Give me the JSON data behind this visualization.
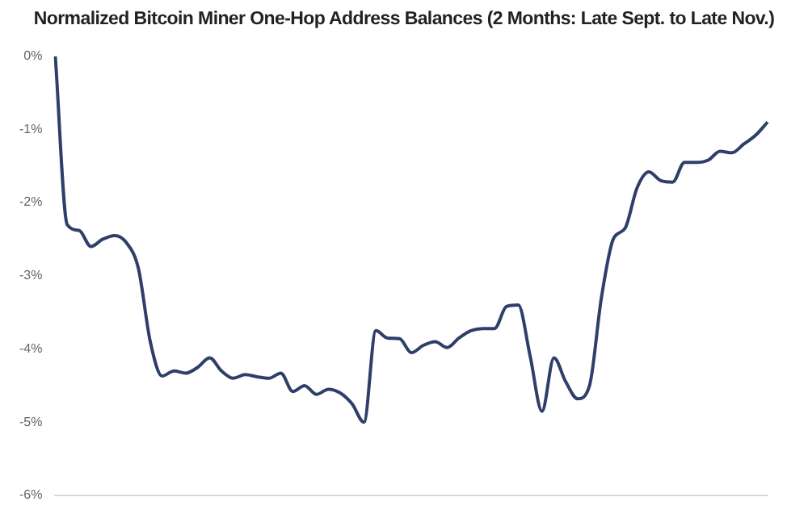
{
  "chart_data": {
    "type": "line",
    "title": "Normalized Bitcoin Miner One-Hop Address Balances (2 Months: Late Sept. to Late Nov.)",
    "categories": [
      null,
      null,
      null,
      null,
      null,
      null,
      null,
      null,
      null,
      null,
      null,
      null,
      null,
      null,
      null,
      null,
      null,
      null,
      null,
      null,
      null,
      null,
      null,
      null,
      null,
      null,
      null,
      null,
      null,
      null,
      null,
      null,
      null,
      null,
      null,
      null,
      null,
      null,
      null,
      null,
      null,
      null,
      null,
      null,
      null,
      null,
      null,
      null,
      null,
      null,
      null,
      null,
      null,
      null,
      null,
      null,
      null,
      null,
      null,
      null,
      null
    ],
    "series": [
      {
        "color": "#2f3f6a",
        "values": [
          0,
          -2.3,
          -2.38,
          -2.6,
          -2.5,
          -2.45,
          -2.55,
          -2.9,
          -3.9,
          -4.37,
          -4.3,
          -4.33,
          -4.25,
          -4.12,
          -4.3,
          -4.4,
          -4.35,
          -4.38,
          -4.4,
          -4.33,
          -4.58,
          -4.5,
          -4.62,
          -4.55,
          -4.6,
          -4.75,
          -5.0,
          -3.75,
          -3.85,
          -3.86,
          -4.05,
          -3.95,
          -3.9,
          -3.98,
          -3.85,
          -3.75,
          -3.72,
          -3.72,
          -3.42,
          -3.4,
          -4.1,
          -4.85,
          -4.12,
          -4.45,
          -4.68,
          -4.5,
          -3.3,
          -2.5,
          -2.35,
          -1.8,
          -1.58,
          -1.7,
          -1.72,
          -1.45,
          -1.45,
          -1.42,
          -1.3,
          -1.32,
          -1.2,
          -1.08,
          -0.9
        ]
      }
    ],
    "ylim": [
      -6,
      0
    ],
    "yticks": [
      {
        "value": -6,
        "label": "-6%"
      },
      {
        "value": -5,
        "label": "-5%"
      },
      {
        "value": -4,
        "label": "-4%"
      },
      {
        "value": -3,
        "label": "-3%"
      },
      {
        "value": -2,
        "label": "-2%"
      },
      {
        "value": -1,
        "label": "-1%"
      },
      {
        "value": 0,
        "label": "0%"
      }
    ],
    "grid": false,
    "legend": false,
    "marker": "none",
    "line_style": "solid",
    "tick_labels": "y"
  }
}
